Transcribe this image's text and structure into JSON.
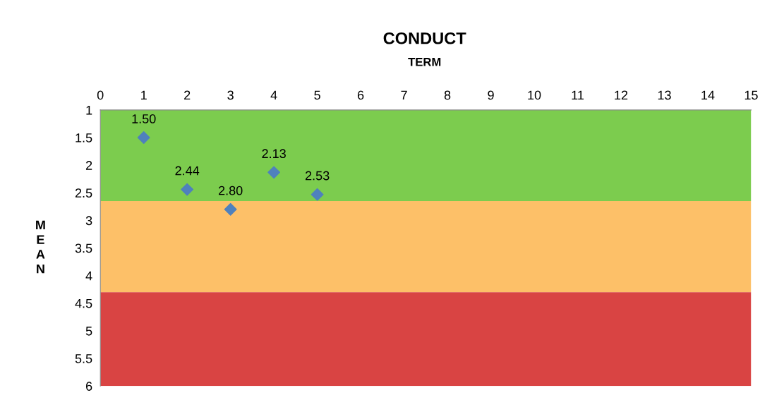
{
  "chart_data": {
    "type": "scatter",
    "title": "CONDUCT",
    "xlabel": "TERM",
    "ylabel": "MEAN",
    "x": [
      1,
      2,
      3,
      4,
      5
    ],
    "series": [
      {
        "color": "#4f81bd",
        "values": [
          1.5,
          2.44,
          2.8,
          2.13,
          2.53
        ],
        "value_labels": [
          "1.50",
          "2.44",
          "2.80",
          "2.13",
          "2.53"
        ]
      }
    ],
    "marker": "diamond",
    "xlim": [
      0,
      15
    ],
    "xticks": [
      0,
      1,
      2,
      3,
      4,
      5,
      6,
      7,
      8,
      9,
      10,
      11,
      12,
      13,
      14,
      15
    ],
    "ylim": [
      6,
      1
    ],
    "yticks": [
      1,
      1.5,
      2,
      2.5,
      3,
      3.5,
      4,
      4.5,
      5,
      5.5,
      6
    ],
    "bands": [
      {
        "axis": "y",
        "from": 1,
        "to": 2.65,
        "color": "#7ccc4e"
      },
      {
        "axis": "y",
        "from": 2.65,
        "to": 4.3,
        "color": "#fdc068"
      },
      {
        "axis": "y",
        "from": 4.3,
        "to": 6,
        "color": "#d94443"
      }
    ],
    "grid": false,
    "legend": false
  }
}
